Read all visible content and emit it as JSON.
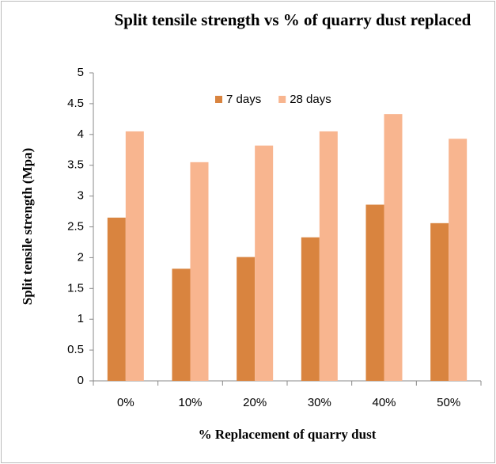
{
  "chart_data": {
    "type": "bar",
    "title": "Split tensile strength vs % of quarry dust replaced",
    "x_label": "% Replacement of quarry dust",
    "y_label": "Split tensile strength (Mpa)",
    "categories": [
      "0%",
      "10%",
      "20%",
      "30%",
      "40%",
      "50%"
    ],
    "series": [
      {
        "name": "7 days",
        "color": "#d9843f",
        "values": [
          2.65,
          1.82,
          2.01,
          2.33,
          2.86,
          2.56
        ]
      },
      {
        "name": "28 days",
        "color": "#f8b58f",
        "values": [
          4.05,
          3.55,
          3.82,
          4.05,
          4.33,
          3.93
        ]
      }
    ],
    "ylim": [
      0,
      5
    ],
    "yticks": [
      0,
      0.5,
      1,
      1.5,
      2,
      2.5,
      3,
      3.5,
      4,
      4.5,
      5
    ],
    "grid": false,
    "legend": "top"
  }
}
